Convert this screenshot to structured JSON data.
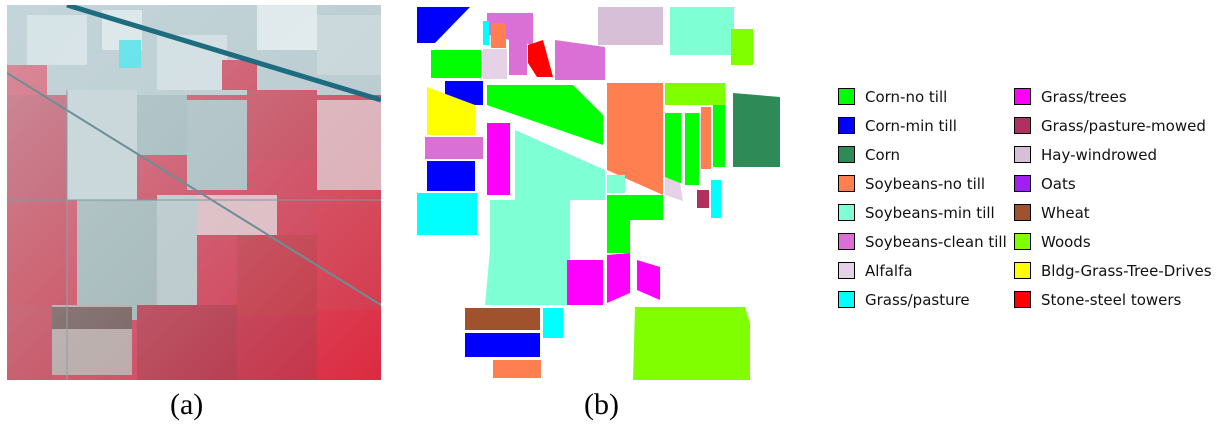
{
  "captions": {
    "a": "(a)",
    "b": "(b)"
  },
  "legend": {
    "columns": [
      [
        {
          "label": "Corn-no till",
          "color": "#00ff00"
        },
        {
          "label": "Corn-min till",
          "color": "#0000ff"
        },
        {
          "label": "Corn",
          "color": "#2e8b57"
        },
        {
          "label": "Soybeans-no till",
          "color": "#ff7f50"
        },
        {
          "label": "Soybeans-min till",
          "color": "#7fffd4"
        },
        {
          "label": "Soybeans-clean till",
          "color": "#da70d6"
        },
        {
          "label": "Alfalfa",
          "color": "#e6d2e6"
        },
        {
          "label": "Grass/pasture",
          "color": "#00ffff"
        }
      ],
      [
        {
          "label": "Grass/trees",
          "color": "#ff00ff"
        },
        {
          "label": "Grass/pasture-mowed",
          "color": "#b03060"
        },
        {
          "label": "Hay-windrowed",
          "color": "#d8bfd8"
        },
        {
          "label": "Oats",
          "color": "#a020f0"
        },
        {
          "label": "Wheat",
          "color": "#a0522d"
        },
        {
          "label": "Woods",
          "color": "#7fff00"
        },
        {
          "label": "Bldg-Grass-Tree-Drives",
          "color": "#ffff00"
        },
        {
          "label": "Stone-steel towers",
          "color": "#ff0000"
        }
      ]
    ]
  }
}
